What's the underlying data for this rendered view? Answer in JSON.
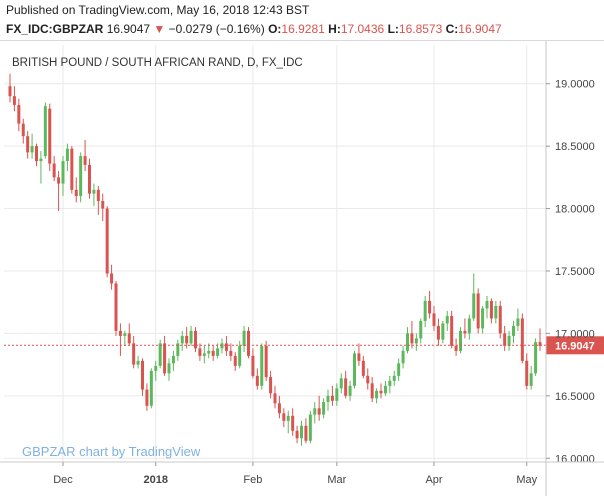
{
  "header": {
    "published": "Published on TradingView.com, May 16, 2018 12:43 BST",
    "symbol": "FX_IDC:GBPZAR",
    "last": "16.9047",
    "arrow": "▼",
    "change": "−0.0279 (−0.16%)",
    "o_label": "O:",
    "o_value": "16.9281",
    "h_label": "H:",
    "h_value": "17.0436",
    "l_label": "L:",
    "l_value": "16.8573",
    "c_label": "C:",
    "c_value": "16.9047"
  },
  "colors": {
    "up": "#5cb85c",
    "down": "#d9534f",
    "grid": "#e9e9e9",
    "last_price_bg": "#d9534f",
    "watermark": "#7fb2e0"
  },
  "chart_data": {
    "type": "candlestick",
    "title": "BRITISH POUND / SOUTH AFRICAN RAND, D, FX_IDC",
    "watermark": "GBPZAR chart by TradingView",
    "last_price_label": "16.9047",
    "last_price": 16.9047,
    "ylim": [
      15.97,
      19.31
    ],
    "yticks": [
      16.0,
      16.5,
      17.0,
      17.5,
      18.0,
      18.5,
      19.0
    ],
    "ytick_labels": [
      "16.0000",
      "16.5000",
      "17.0000",
      "17.5000",
      "18.0000",
      "18.5000",
      "19.0000"
    ],
    "xtick_labels": [
      "Dec",
      "2018",
      "Feb",
      "Mar",
      "Apr",
      "May"
    ],
    "xtick_bar_index": [
      12,
      33,
      55,
      74,
      96,
      117
    ],
    "grid": true,
    "candles": [
      [
        18.98,
        19.08,
        18.85,
        18.9
      ],
      [
        18.9,
        18.98,
        18.78,
        18.83
      ],
      [
        18.83,
        18.88,
        18.62,
        18.68
      ],
      [
        18.68,
        18.72,
        18.52,
        18.58
      ],
      [
        18.58,
        18.62,
        18.4,
        18.45
      ],
      [
        18.45,
        18.6,
        18.4,
        18.5
      ],
      [
        18.5,
        18.52,
        18.34,
        18.38
      ],
      [
        18.38,
        18.46,
        18.2,
        18.4
      ],
      [
        18.42,
        18.85,
        18.4,
        18.82
      ],
      [
        18.8,
        18.84,
        18.3,
        18.36
      ],
      [
        18.36,
        18.42,
        18.22,
        18.25
      ],
      [
        18.25,
        18.3,
        17.98,
        18.2
      ],
      [
        18.2,
        18.42,
        18.1,
        18.38
      ],
      [
        18.38,
        18.52,
        18.3,
        18.48
      ],
      [
        18.48,
        18.5,
        18.12,
        18.15
      ],
      [
        18.15,
        18.25,
        18.05,
        18.1
      ],
      [
        18.1,
        18.45,
        18.05,
        18.42
      ],
      [
        18.42,
        18.55,
        18.3,
        18.35
      ],
      [
        18.35,
        18.4,
        18.08,
        18.12
      ],
      [
        18.12,
        18.2,
        18.02,
        18.15
      ],
      [
        18.15,
        18.18,
        17.95,
        18.06
      ],
      [
        18.06,
        18.12,
        17.9,
        18.0
      ],
      [
        18.0,
        18.02,
        17.45,
        17.48
      ],
      [
        17.48,
        17.55,
        17.35,
        17.4
      ],
      [
        17.4,
        17.42,
        16.98,
        17.02
      ],
      [
        17.02,
        17.08,
        16.82,
        16.98
      ],
      [
        16.98,
        17.02,
        16.9,
        17.0
      ],
      [
        17.0,
        17.08,
        16.9,
        16.92
      ],
      [
        16.92,
        16.98,
        16.72,
        16.75
      ],
      [
        16.75,
        16.82,
        16.72,
        16.78
      ],
      [
        16.78,
        16.8,
        16.5,
        16.55
      ],
      [
        16.55,
        16.6,
        16.38,
        16.42
      ],
      [
        16.42,
        16.72,
        16.4,
        16.7
      ],
      [
        16.7,
        16.78,
        16.62,
        16.74
      ],
      [
        16.74,
        16.95,
        16.72,
        16.92
      ],
      [
        16.92,
        16.98,
        16.66,
        16.68
      ],
      [
        16.68,
        16.8,
        16.62,
        16.76
      ],
      [
        16.76,
        16.86,
        16.7,
        16.82
      ],
      [
        16.82,
        16.95,
        16.78,
        16.92
      ],
      [
        16.92,
        17.02,
        16.86,
        16.98
      ],
      [
        16.98,
        17.05,
        16.88,
        16.92
      ],
      [
        16.92,
        17.06,
        16.9,
        17.02
      ],
      [
        17.02,
        17.05,
        16.85,
        16.88
      ],
      [
        16.88,
        16.92,
        16.78,
        16.82
      ],
      [
        16.82,
        16.9,
        16.76,
        16.84
      ],
      [
        16.84,
        16.92,
        16.8,
        16.86
      ],
      [
        16.86,
        16.9,
        16.78,
        16.82
      ],
      [
        16.82,
        16.92,
        16.8,
        16.88
      ],
      [
        16.88,
        16.96,
        16.84,
        16.92
      ],
      [
        16.92,
        16.98,
        16.82,
        16.86
      ],
      [
        16.86,
        16.92,
        16.78,
        16.82
      ],
      [
        16.82,
        16.85,
        16.7,
        16.74
      ],
      [
        16.74,
        16.94,
        16.72,
        16.9
      ],
      [
        16.9,
        17.06,
        16.85,
        17.02
      ],
      [
        17.02,
        17.05,
        16.8,
        16.82
      ],
      [
        16.82,
        16.88,
        16.64,
        16.66
      ],
      [
        16.66,
        16.72,
        16.55,
        16.58
      ],
      [
        16.58,
        16.92,
        16.55,
        16.9
      ],
      [
        16.9,
        16.94,
        16.62,
        16.65
      ],
      [
        16.65,
        16.7,
        16.48,
        16.52
      ],
      [
        16.52,
        16.58,
        16.4,
        16.44
      ],
      [
        16.44,
        16.5,
        16.32,
        16.36
      ],
      [
        16.36,
        16.4,
        16.25,
        16.3
      ],
      [
        16.3,
        16.38,
        16.2,
        16.34
      ],
      [
        16.34,
        16.4,
        16.18,
        16.22
      ],
      [
        16.22,
        16.26,
        16.12,
        16.16
      ],
      [
        16.16,
        16.3,
        16.1,
        16.26
      ],
      [
        16.26,
        16.32,
        16.12,
        16.14
      ],
      [
        16.14,
        16.38,
        16.12,
        16.35
      ],
      [
        16.35,
        16.45,
        16.28,
        16.4
      ],
      [
        16.4,
        16.5,
        16.3,
        16.35
      ],
      [
        16.35,
        16.48,
        16.32,
        16.45
      ],
      [
        16.45,
        16.55,
        16.38,
        16.5
      ],
      [
        16.5,
        16.58,
        16.42,
        16.46
      ],
      [
        16.46,
        16.6,
        16.42,
        16.56
      ],
      [
        16.56,
        16.68,
        16.52,
        16.64
      ],
      [
        16.64,
        16.7,
        16.48,
        16.5
      ],
      [
        16.5,
        16.62,
        16.46,
        16.58
      ],
      [
        16.58,
        16.86,
        16.56,
        16.84
      ],
      [
        16.84,
        16.92,
        16.74,
        16.78
      ],
      [
        16.78,
        16.82,
        16.64,
        16.66
      ],
      [
        16.66,
        16.72,
        16.55,
        16.6
      ],
      [
        16.6,
        16.65,
        16.45,
        16.48
      ],
      [
        16.48,
        16.56,
        16.44,
        16.54
      ],
      [
        16.54,
        16.6,
        16.48,
        16.52
      ],
      [
        16.52,
        16.62,
        16.5,
        16.58
      ],
      [
        16.58,
        16.66,
        16.52,
        16.62
      ],
      [
        16.62,
        16.7,
        16.58,
        16.66
      ],
      [
        16.66,
        16.8,
        16.62,
        16.76
      ],
      [
        16.76,
        16.9,
        16.72,
        16.86
      ],
      [
        16.86,
        17.05,
        16.84,
        17.0
      ],
      [
        17.0,
        17.1,
        16.88,
        16.92
      ],
      [
        16.92,
        17.0,
        16.86,
        16.96
      ],
      [
        16.96,
        17.12,
        16.92,
        17.1
      ],
      [
        17.1,
        17.3,
        17.05,
        17.26
      ],
      [
        17.26,
        17.34,
        17.12,
        17.16
      ],
      [
        17.16,
        17.22,
        17.02,
        17.06
      ],
      [
        17.06,
        17.12,
        16.9,
        16.95
      ],
      [
        16.95,
        17.1,
        16.92,
        17.08
      ],
      [
        17.08,
        17.18,
        17.02,
        17.14
      ],
      [
        17.14,
        17.18,
        16.88,
        16.9
      ],
      [
        16.9,
        16.96,
        16.82,
        16.86
      ],
      [
        16.86,
        17.05,
        16.84,
        17.02
      ],
      [
        17.02,
        17.12,
        16.96,
        17.0
      ],
      [
        17.0,
        17.15,
        16.95,
        17.12
      ],
      [
        17.12,
        17.48,
        17.1,
        17.32
      ],
      [
        17.32,
        17.36,
        17.0,
        17.04
      ],
      [
        17.04,
        17.22,
        17.0,
        17.2
      ],
      [
        17.2,
        17.3,
        17.12,
        17.26
      ],
      [
        17.26,
        17.28,
        17.08,
        17.12
      ],
      [
        17.12,
        17.26,
        17.08,
        17.22
      ],
      [
        17.22,
        17.26,
        16.96,
        17.0
      ],
      [
        17.0,
        17.06,
        16.86,
        16.9
      ],
      [
        16.9,
        17.02,
        16.86,
        16.98
      ],
      [
        16.98,
        17.1,
        16.92,
        17.06
      ],
      [
        17.06,
        17.2,
        17.02,
        17.12
      ],
      [
        17.12,
        17.16,
        16.76,
        16.78
      ],
      [
        16.78,
        16.84,
        16.55,
        16.58
      ],
      [
        16.58,
        16.74,
        16.55,
        16.68
      ],
      [
        16.68,
        16.96,
        16.66,
        16.93
      ],
      [
        16.93,
        17.04,
        16.86,
        16.9
      ]
    ]
  }
}
